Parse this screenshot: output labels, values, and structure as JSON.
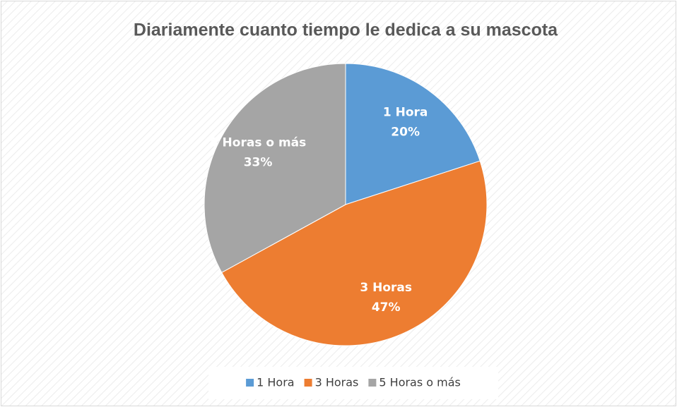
{
  "chart_data": {
    "type": "pie",
    "title": "Diariamente cuanto tiempo le dedica a su mascota",
    "categories": [
      "1 Hora",
      "3 Horas",
      "5 Horas o más"
    ],
    "values": [
      20,
      47,
      33
    ],
    "value_labels": [
      "20%",
      "47%",
      "33%"
    ],
    "colors": [
      "#5b9bd5",
      "#ed7d31",
      "#a5a5a5"
    ],
    "legend": "bottom"
  }
}
